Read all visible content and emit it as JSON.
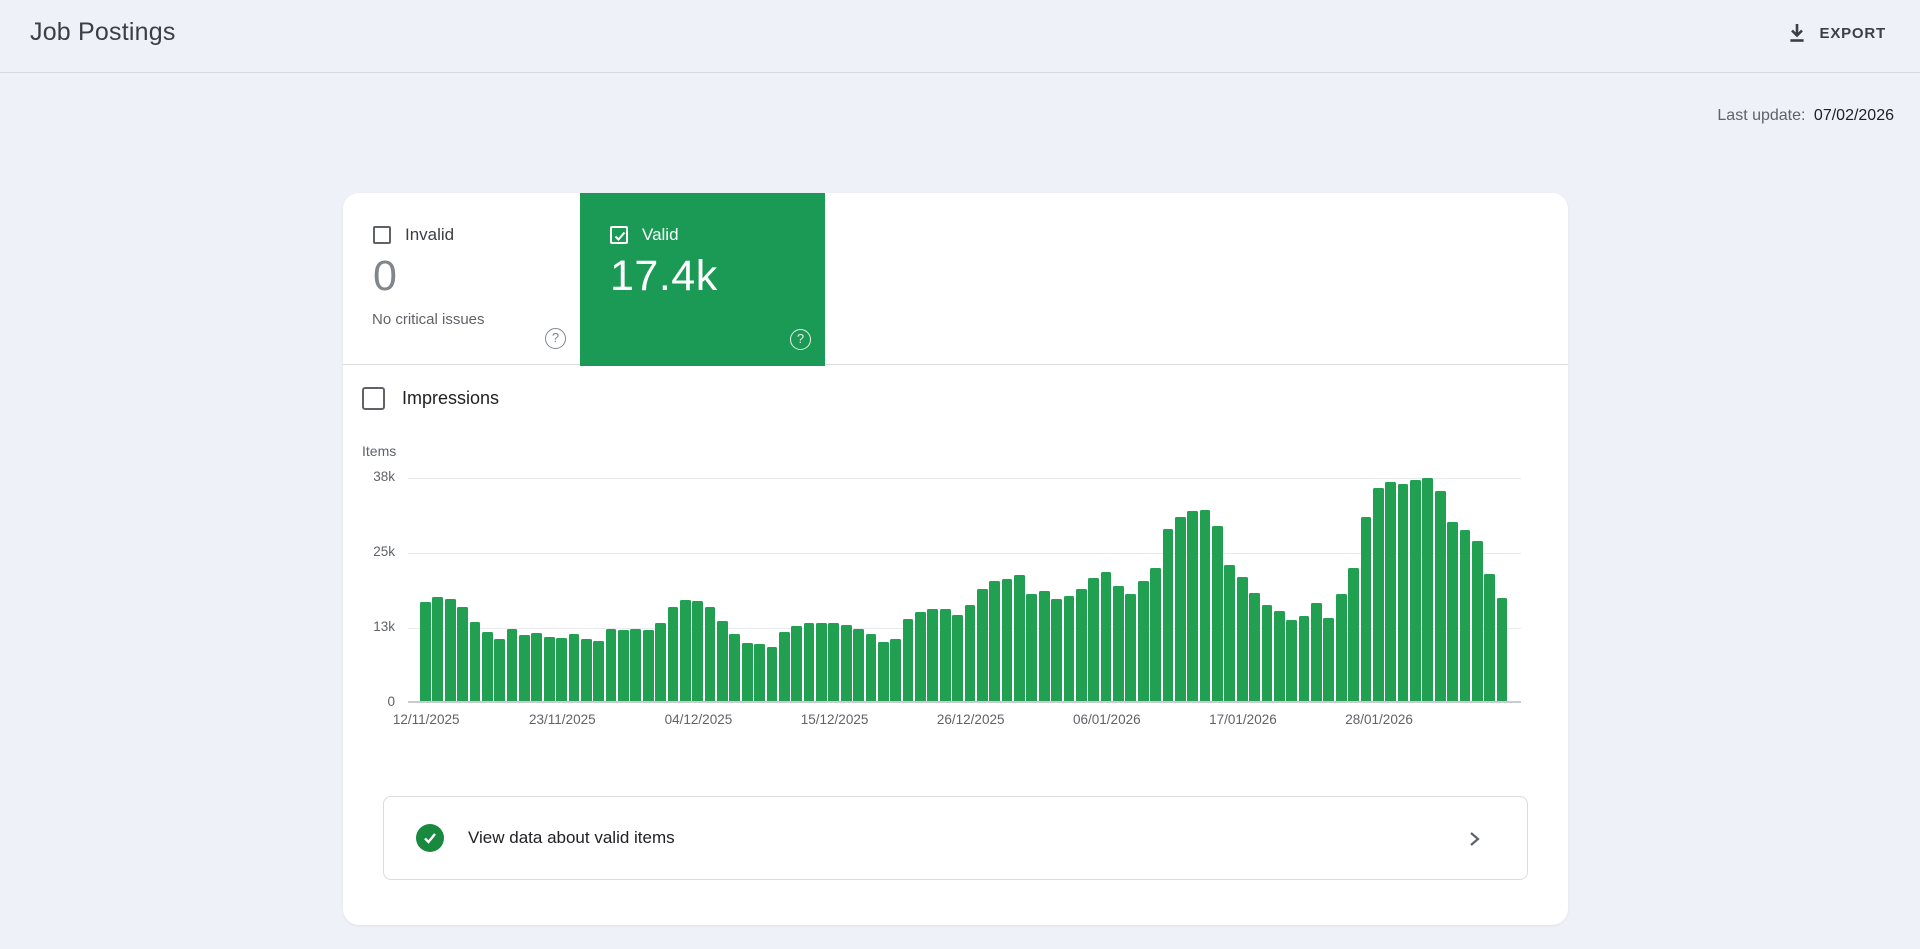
{
  "header": {
    "title": "Job Postings",
    "export_label": "EXPORT"
  },
  "status_bar": {
    "last_update_label": "Last update:",
    "last_update_value": "07/02/2026"
  },
  "icons": {
    "help_glyph": "?"
  },
  "tiles": {
    "invalid": {
      "label": "Invalid",
      "value": "0",
      "subtitle": "No critical issues",
      "checked": false
    },
    "valid": {
      "label": "Valid",
      "value": "17.4k",
      "checked": true,
      "color": "#1a9a54"
    }
  },
  "impressions_toggle": {
    "label": "Impressions",
    "checked": false
  },
  "chart_data": {
    "type": "bar",
    "title": "",
    "ylabel": "Items",
    "xlabel": "",
    "values_unit": "thousands of items",
    "ylim": [
      0,
      38
    ],
    "grid": true,
    "legend": "none",
    "bar_color": "#22a052",
    "yticks": [
      {
        "value": 0,
        "label": "0"
      },
      {
        "value": 12.667,
        "label": "13k"
      },
      {
        "value": 25.333,
        "label": "25k"
      },
      {
        "value": 38,
        "label": "38k"
      }
    ],
    "xticks": [
      {
        "index": 0,
        "label": "12/11/2025"
      },
      {
        "index": 11,
        "label": "23/11/2025"
      },
      {
        "index": 22,
        "label": "04/12/2025"
      },
      {
        "index": 33,
        "label": "15/12/2025"
      },
      {
        "index": 44,
        "label": "26/12/2025"
      },
      {
        "index": 55,
        "label": "06/01/2026"
      },
      {
        "index": 66,
        "label": "17/01/2026"
      },
      {
        "index": 77,
        "label": "28/01/2026"
      }
    ],
    "series": [
      {
        "name": "Valid items",
        "values": [
          16.8,
          17.6,
          17.3,
          15.9,
          13.3,
          11.7,
          10.5,
          12.1,
          11.2,
          11.5,
          10.8,
          10.6,
          11.3,
          10.4,
          10.1,
          12.1,
          12.0,
          12.1,
          12.0,
          13.1,
          15.8,
          17.0,
          16.9,
          15.8,
          13.5,
          11.4,
          9.8,
          9.6,
          9.2,
          11.7,
          12.7,
          13.2,
          13.1,
          13.2,
          12.8,
          12.1,
          11.4,
          10.0,
          10.4,
          13.9,
          15.1,
          15.5,
          15.5,
          14.6,
          16.2,
          19.0,
          20.3,
          20.6,
          21.3,
          18.1,
          18.6,
          17.3,
          17.7,
          18.9,
          20.7,
          21.8,
          19.4,
          18.1,
          20.3,
          22.5,
          29.0,
          31.0,
          32.1,
          32.3,
          29.5,
          22.9,
          20.9,
          18.2,
          16.3,
          15.2,
          13.7,
          14.4,
          16.5,
          14.1,
          18.0,
          22.5,
          31.0,
          35.9,
          37.0,
          36.7,
          37.4,
          37.6,
          35.5,
          30.2,
          28.8,
          27.0,
          21.5,
          17.4
        ]
      }
    ]
  },
  "footer_link": {
    "label": "View data about valid items",
    "check_color": "#18893f"
  }
}
